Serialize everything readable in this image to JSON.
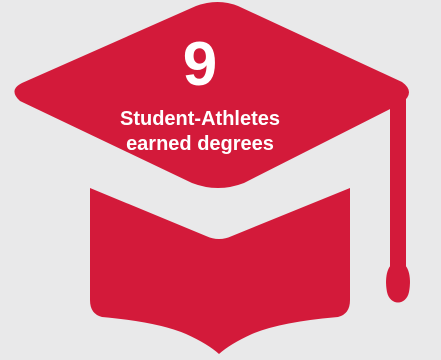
{
  "infographic": {
    "stat_number": "9",
    "caption_line1": "Student-Athletes",
    "caption_line2": "earned degrees"
  },
  "colors": {
    "background": "#e9e9ea",
    "cap": "#d31a3a",
    "text": "#ffffff"
  },
  "icons": {
    "main": "graduation-cap-icon"
  }
}
